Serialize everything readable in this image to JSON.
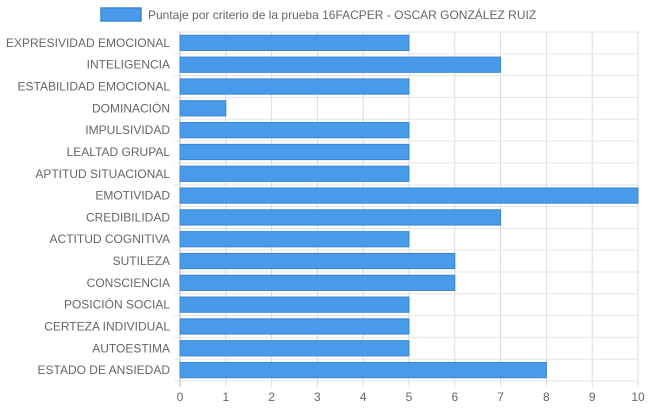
{
  "chart_data": {
    "type": "bar",
    "orientation": "horizontal",
    "categories": [
      "EXPRESIVIDAD EMOCIONAL",
      "INTELIGENCIA",
      "ESTABILIDAD EMOCIONAL",
      "DOMINACIÓN",
      "IMPULSIVIDAD",
      "LEALTAD GRUPAL",
      "APTITUD SITUACIONAL",
      "EMOTIVIDAD",
      "CREDIBILIDAD",
      "ACTITUD COGNITIVA",
      "SUTILEZA",
      "CONSCIENCIA",
      "POSICIÓN SOCIAL",
      "CERTEZA INDIVIDUAL",
      "AUTOESTIMA",
      "ESTADO DE ANSIEDAD"
    ],
    "series": [
      {
        "name": "Puntaje por criterio de la prueba 16FACPER - OSCAR GONZÁLEZ RUIZ",
        "values": [
          5,
          7,
          5,
          1,
          5,
          5,
          5,
          10,
          7,
          5,
          6,
          6,
          5,
          5,
          5,
          8
        ],
        "color": "#4a9aea",
        "border_color": "#3a85d6"
      }
    ],
    "xlim": [
      0,
      10
    ],
    "x_ticks": [
      "0",
      "1",
      "2",
      "3",
      "4",
      "5",
      "6",
      "7",
      "8",
      "9",
      "10"
    ],
    "grid": true,
    "legend_position": "top-center",
    "title": "",
    "xlabel": "",
    "ylabel": ""
  }
}
